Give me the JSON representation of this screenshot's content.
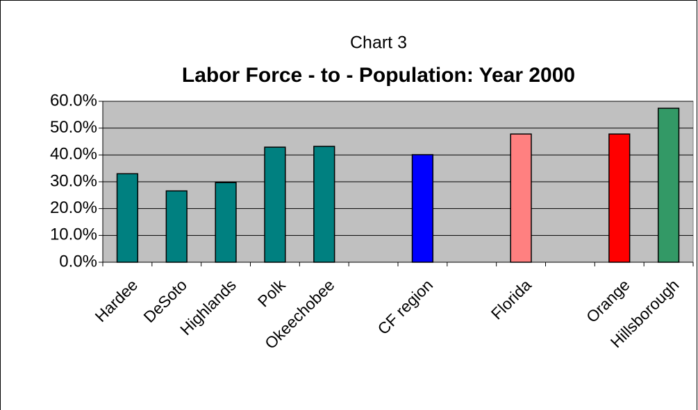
{
  "chart_data": {
    "type": "bar",
    "subtitle": "Chart 3",
    "title": "Labor Force - to - Population: Year 2000",
    "categories": [
      "Hardee",
      "DeSoto",
      "Highlands",
      "Polk",
      "Okeechobee",
      null,
      "CF region",
      null,
      "Florida",
      null,
      "Orange",
      "Hillsborough"
    ],
    "values": [
      33,
      26.6,
      29.7,
      42.9,
      43.2,
      null,
      40.1,
      null,
      47.8,
      null,
      47.8,
      57.4
    ],
    "colors": [
      "#008080",
      "#008080",
      "#008080",
      "#008080",
      "#008080",
      null,
      "#0000ff",
      null,
      "#ff8080",
      null,
      "#ff0000",
      "#339966"
    ],
    "ylim": [
      0,
      60
    ],
    "yticks": [
      {
        "value": 0,
        "label": "0.0%"
      },
      {
        "value": 10,
        "label": "10.0%"
      },
      {
        "value": 20,
        "label": "20.0%"
      },
      {
        "value": 30,
        "label": "30.0%"
      },
      {
        "value": 40,
        "label": "40.0%"
      },
      {
        "value": 50,
        "label": "50.0%"
      },
      {
        "value": 60,
        "label": "60.0%"
      }
    ],
    "grid": true
  }
}
